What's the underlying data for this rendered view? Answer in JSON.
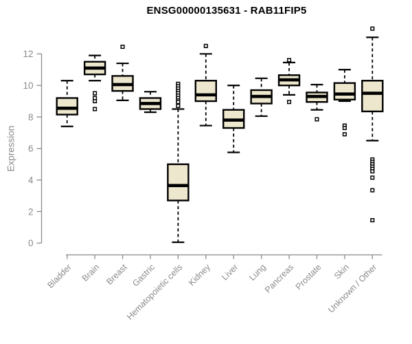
{
  "chart_data": {
    "type": "boxplot",
    "title": "ENSG00000135631 - RAB11FIP5",
    "ylabel": "Expression",
    "xlabel": "",
    "ylim": [
      0,
      12
    ],
    "y_ticks": [
      0,
      2,
      4,
      6,
      8,
      10,
      12
    ],
    "grid": false,
    "legend": "none",
    "categories": [
      "Bladder",
      "Brain",
      "Breast",
      "Gastric",
      "Hematopoietic cells",
      "Kidney",
      "Liver",
      "Lung",
      "Pancreas",
      "Prostate",
      "Skin",
      "Unknown / Other"
    ],
    "series": [
      {
        "category": "Bladder",
        "whisker_low": 7.4,
        "q1": 8.15,
        "median": 8.55,
        "q3": 9.2,
        "whisker_high": 10.3,
        "outliers": []
      },
      {
        "category": "Brain",
        "whisker_low": 10.3,
        "q1": 10.7,
        "median": 11.1,
        "q3": 11.5,
        "whisker_high": 11.9,
        "outliers": [
          9.5,
          9.2,
          9.0,
          8.5
        ]
      },
      {
        "category": "Breast",
        "whisker_low": 9.05,
        "q1": 9.65,
        "median": 10.05,
        "q3": 10.6,
        "whisker_high": 11.4,
        "outliers": [
          12.45
        ]
      },
      {
        "category": "Gastric",
        "whisker_low": 8.3,
        "q1": 8.5,
        "median": 8.85,
        "q3": 9.2,
        "whisker_high": 9.6,
        "outliers": []
      },
      {
        "category": "Hematopoietic cells",
        "whisker_low": 0.05,
        "q1": 2.7,
        "median": 3.65,
        "q3": 5.0,
        "whisker_high": 8.5,
        "outliers": [
          10.1,
          9.95,
          9.8,
          9.65,
          9.5,
          9.35,
          9.2,
          9.05,
          8.95,
          8.7
        ]
      },
      {
        "category": "Kidney",
        "whisker_low": 7.45,
        "q1": 9.0,
        "median": 9.4,
        "q3": 10.3,
        "whisker_high": 12.0,
        "outliers": [
          12.5
        ]
      },
      {
        "category": "Liver",
        "whisker_low": 5.75,
        "q1": 7.3,
        "median": 7.8,
        "q3": 8.45,
        "whisker_high": 10.0,
        "outliers": []
      },
      {
        "category": "Lung",
        "whisker_low": 8.05,
        "q1": 8.85,
        "median": 9.3,
        "q3": 9.7,
        "whisker_high": 10.45,
        "outliers": []
      },
      {
        "category": "Pancreas",
        "whisker_low": 9.4,
        "q1": 10.0,
        "median": 10.35,
        "q3": 10.65,
        "whisker_high": 11.45,
        "outliers": [
          11.6,
          8.95
        ]
      },
      {
        "category": "Prostate",
        "whisker_low": 8.45,
        "q1": 8.95,
        "median": 9.3,
        "q3": 9.55,
        "whisker_high": 10.05,
        "outliers": [
          7.85
        ]
      },
      {
        "category": "Skin",
        "whisker_low": 9.0,
        "q1": 9.1,
        "median": 9.45,
        "q3": 10.15,
        "whisker_high": 11.0,
        "outliers": [
          7.45,
          7.3,
          6.9
        ]
      },
      {
        "category": "Unknown / Other",
        "whisker_low": 6.5,
        "q1": 8.35,
        "median": 9.5,
        "q3": 10.3,
        "whisker_high": 13.05,
        "outliers": [
          13.6,
          5.3,
          5.15,
          5.0,
          4.85,
          4.7,
          4.55,
          4.15,
          3.35,
          1.45
        ]
      }
    ],
    "colors": {
      "box_fill": "#ECE7CD",
      "box_border": "#000000",
      "median": "#000000",
      "whisker": "#000000",
      "axis": "#898989",
      "tick_text": "#8a8a8a",
      "title_text": "#000000",
      "background": "#ffffff"
    }
  }
}
